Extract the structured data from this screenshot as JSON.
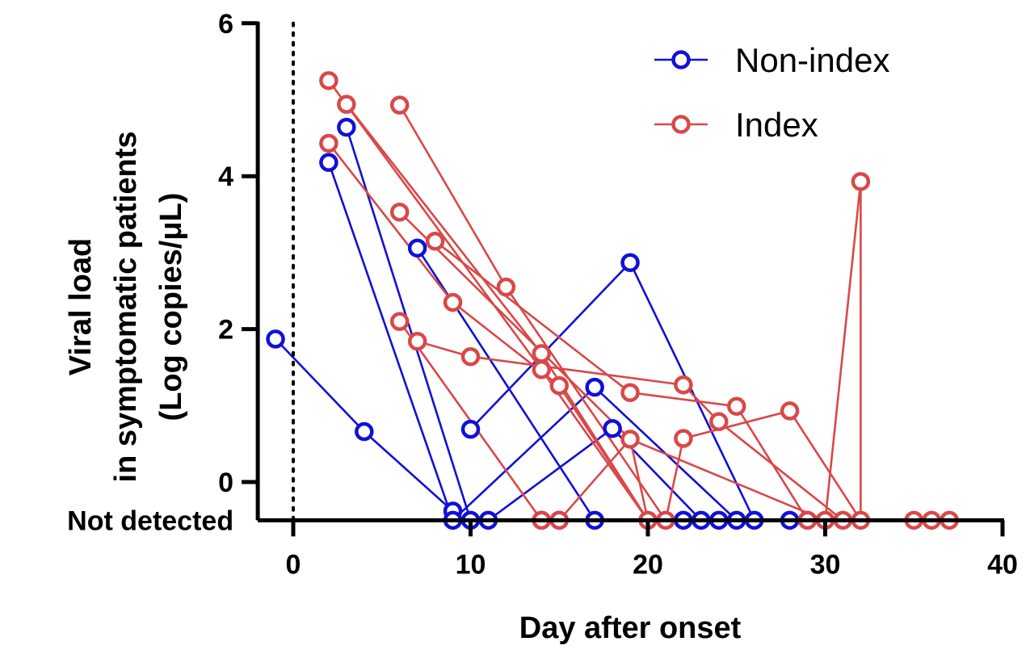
{
  "chart_data": {
    "type": "line",
    "xlabel": "Day after onset",
    "ylabel_lines": [
      "Viral load",
      "in symptomatic patients",
      "(Log copies/μL)"
    ],
    "xlim": [
      -2,
      40
    ],
    "ylim": [
      -0.5,
      6
    ],
    "x_ticks": [
      0,
      10,
      20,
      30,
      40
    ],
    "x_tick_labels": [
      "0",
      "10",
      "20",
      "30",
      "40"
    ],
    "y_ticks": [
      0,
      2,
      4,
      6
    ],
    "y_tick_labels": [
      "0",
      "2",
      "4",
      "6"
    ],
    "not_detected_value": -0.5,
    "not_detected_label": "Not detected",
    "onset_marker_x": 0,
    "legend_position": "top-right",
    "colors": {
      "non_index": "#1010d8",
      "index": "#d94848"
    },
    "series": [
      {
        "name": "Non-index",
        "color_key": "non_index",
        "lines": [
          [
            [
              -1,
              1.87
            ],
            [
              4,
              0.66
            ],
            [
              9,
              -0.38
            ]
          ],
          [
            [
              2,
              4.18
            ],
            [
              9,
              -0.5
            ]
          ],
          [
            [
              3,
              4.64
            ],
            [
              10,
              -0.5
            ]
          ],
          [
            [
              7,
              3.06
            ],
            [
              17,
              -0.5
            ]
          ],
          [
            [
              9,
              -0.5
            ],
            [
              17,
              1.24
            ],
            [
              25,
              -0.5
            ]
          ],
          [
            [
              10,
              0.69
            ],
            [
              19,
              2.87
            ],
            [
              26,
              -0.5
            ]
          ],
          [
            [
              11,
              -0.5
            ],
            [
              18,
              0.7
            ],
            [
              23,
              -0.5
            ]
          ]
        ],
        "points": [
          [
            9,
            -0.5
          ],
          [
            10,
            -0.5
          ],
          [
            11,
            -0.5
          ],
          [
            14,
            -0.5
          ],
          [
            15,
            -0.5
          ],
          [
            17,
            -0.5
          ],
          [
            22,
            -0.5
          ],
          [
            23,
            -0.5
          ],
          [
            24,
            -0.5
          ],
          [
            25,
            -0.5
          ],
          [
            26,
            -0.5
          ],
          [
            28,
            -0.5
          ],
          [
            29,
            -0.5
          ]
        ]
      },
      {
        "name": "Index",
        "color_key": "index",
        "lines": [
          [
            [
              2,
              5.25
            ],
            [
              14,
              1.47
            ],
            [
              20,
              -0.5
            ]
          ],
          [
            [
              3,
              4.94
            ],
            [
              14,
              1.68
            ],
            [
              20,
              -0.5
            ]
          ],
          [
            [
              6,
              4.93
            ],
            [
              12,
              2.55
            ],
            [
              21,
              -0.5
            ]
          ],
          [
            [
              2,
              4.43
            ],
            [
              9,
              2.35
            ],
            [
              15,
              1.26
            ],
            [
              20,
              -0.5
            ]
          ],
          [
            [
              6,
              3.53
            ],
            [
              19,
              0.56
            ],
            [
              30,
              -0.5
            ]
          ],
          [
            [
              8,
              3.15
            ],
            [
              19,
              1.17
            ],
            [
              25,
              0.99
            ],
            [
              29,
              -0.5
            ]
          ],
          [
            [
              6,
              2.1
            ],
            [
              14,
              -0.5
            ]
          ],
          [
            [
              7,
              1.84
            ],
            [
              10,
              1.64
            ],
            [
              22,
              1.27
            ],
            [
              24,
              0.79
            ],
            [
              31,
              -0.5
            ]
          ],
          [
            [
              15,
              -0.5
            ],
            [
              19,
              0.56
            ],
            [
              20,
              -0.5
            ]
          ],
          [
            [
              21,
              -0.5
            ],
            [
              22,
              0.57
            ],
            [
              28,
              0.93
            ],
            [
              32,
              -0.5
            ]
          ],
          [
            [
              30,
              -0.5
            ],
            [
              32,
              3.93
            ],
            [
              32,
              -0.5
            ]
          ]
        ],
        "points": [
          [
            20,
            -0.5
          ],
          [
            21,
            -0.5
          ],
          [
            30,
            -0.5
          ],
          [
            31,
            -0.5
          ],
          [
            32,
            -0.5
          ],
          [
            35,
            -0.5
          ],
          [
            36,
            -0.5
          ],
          [
            37,
            -0.5
          ]
        ]
      }
    ]
  }
}
